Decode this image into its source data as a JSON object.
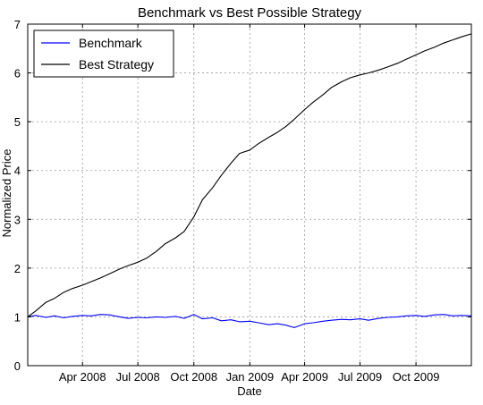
{
  "chart_data": {
    "type": "line",
    "title": "Benchmark vs Best Possible Strategy",
    "xlabel": "Date",
    "ylabel": "Normalized Price",
    "ylim": [
      0,
      7
    ],
    "xlim": [
      "2008-01-02",
      "2009-12-31"
    ],
    "yticks": [
      0,
      1,
      2,
      3,
      4,
      5,
      6,
      7
    ],
    "xticks": [
      {
        "label": "Apr 2008",
        "date": "2008-04-01"
      },
      {
        "label": "Jul 2008",
        "date": "2008-07-01"
      },
      {
        "label": "Oct 2008",
        "date": "2008-10-01"
      },
      {
        "label": "Jan 2009",
        "date": "2009-01-01"
      },
      {
        "label": "Apr 2009",
        "date": "2009-04-01"
      },
      {
        "label": "Jul 2009",
        "date": "2009-07-01"
      },
      {
        "label": "Oct 2009",
        "date": "2009-10-01"
      }
    ],
    "grid": true,
    "legend_position": "top-left",
    "series": [
      {
        "name": "Benchmark",
        "color": "#0000ff",
        "x": [
          "2008-01-02",
          "2008-01-15",
          "2008-02-01",
          "2008-02-15",
          "2008-03-01",
          "2008-03-15",
          "2008-04-01",
          "2008-04-15",
          "2008-05-01",
          "2008-05-15",
          "2008-06-01",
          "2008-06-15",
          "2008-07-01",
          "2008-07-15",
          "2008-08-01",
          "2008-08-15",
          "2008-09-01",
          "2008-09-15",
          "2008-10-01",
          "2008-10-15",
          "2008-11-01",
          "2008-11-15",
          "2008-12-01",
          "2008-12-15",
          "2009-01-01",
          "2009-01-15",
          "2009-02-01",
          "2009-02-15",
          "2009-03-01",
          "2009-03-15",
          "2009-04-01",
          "2009-04-15",
          "2009-05-01",
          "2009-05-15",
          "2009-06-01",
          "2009-06-15",
          "2009-07-01",
          "2009-07-15",
          "2009-08-01",
          "2009-08-15",
          "2009-09-01",
          "2009-09-15",
          "2009-10-01",
          "2009-10-15",
          "2009-11-01",
          "2009-11-15",
          "2009-12-01",
          "2009-12-15",
          "2009-12-31"
        ],
        "y": [
          1.0,
          1.03,
          0.99,
          1.02,
          0.98,
          1.01,
          1.03,
          1.02,
          1.05,
          1.04,
          1.0,
          0.97,
          0.99,
          0.98,
          1.0,
          0.99,
          1.01,
          0.97,
          1.05,
          0.96,
          0.98,
          0.92,
          0.94,
          0.9,
          0.91,
          0.88,
          0.84,
          0.86,
          0.83,
          0.78,
          0.86,
          0.88,
          0.91,
          0.93,
          0.95,
          0.94,
          0.96,
          0.93,
          0.97,
          0.99,
          1.0,
          1.02,
          1.03,
          1.01,
          1.04,
          1.05,
          1.02,
          1.03,
          1.02
        ]
      },
      {
        "name": "Best Strategy",
        "color": "#000000",
        "x": [
          "2008-01-02",
          "2008-01-15",
          "2008-02-01",
          "2008-02-15",
          "2008-03-01",
          "2008-03-15",
          "2008-04-01",
          "2008-04-15",
          "2008-05-01",
          "2008-05-15",
          "2008-06-01",
          "2008-06-15",
          "2008-07-01",
          "2008-07-15",
          "2008-08-01",
          "2008-08-15",
          "2008-09-01",
          "2008-09-15",
          "2008-10-01",
          "2008-10-15",
          "2008-11-01",
          "2008-11-15",
          "2008-12-01",
          "2008-12-15",
          "2009-01-01",
          "2009-01-15",
          "2009-02-01",
          "2009-02-15",
          "2009-03-01",
          "2009-03-15",
          "2009-04-01",
          "2009-04-15",
          "2009-05-01",
          "2009-05-15",
          "2009-06-01",
          "2009-06-15",
          "2009-07-01",
          "2009-07-15",
          "2009-08-01",
          "2009-08-15",
          "2009-09-01",
          "2009-09-15",
          "2009-10-01",
          "2009-10-15",
          "2009-11-01",
          "2009-11-15",
          "2009-12-01",
          "2009-12-15",
          "2009-12-31"
        ],
        "y": [
          1.0,
          1.12,
          1.3,
          1.38,
          1.5,
          1.58,
          1.65,
          1.72,
          1.8,
          1.88,
          1.98,
          2.05,
          2.12,
          2.2,
          2.35,
          2.5,
          2.62,
          2.75,
          3.05,
          3.4,
          3.65,
          3.9,
          4.15,
          4.35,
          4.42,
          4.55,
          4.68,
          4.78,
          4.9,
          5.05,
          5.25,
          5.4,
          5.55,
          5.7,
          5.82,
          5.9,
          5.96,
          6.0,
          6.06,
          6.12,
          6.2,
          6.28,
          6.37,
          6.45,
          6.53,
          6.61,
          6.68,
          6.74,
          6.8
        ]
      }
    ]
  }
}
